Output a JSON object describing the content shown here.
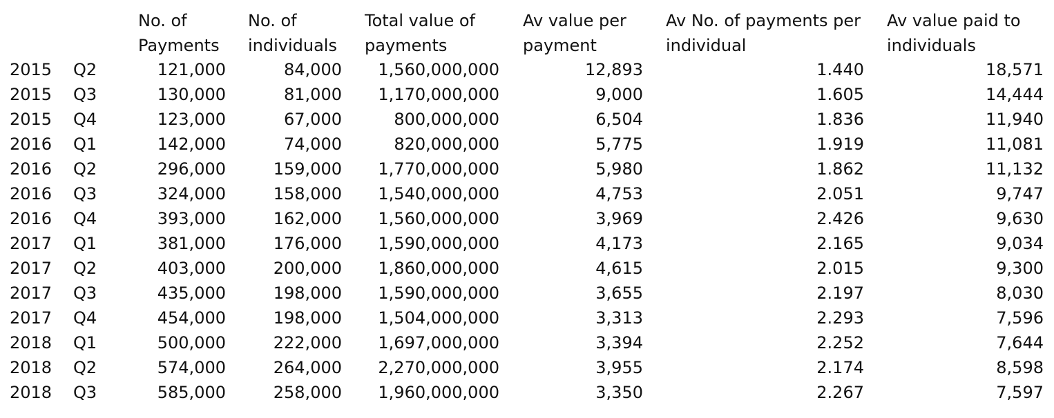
{
  "headers": [
    {
      "line1": "No. of",
      "line2": "Payments"
    },
    {
      "line1": "No. of",
      "line2": "individuals"
    },
    {
      "line1": "Total value of",
      "line2": "payments"
    },
    {
      "line1": "Av value per",
      "line2": "payment"
    },
    {
      "line1": "Av No. of payments per",
      "line2": "individual"
    },
    {
      "line1": "Av value paid to",
      "line2": "individuals"
    }
  ],
  "rows": [
    {
      "year": "2015",
      "quarter": "Q2",
      "payments": "121,000",
      "individuals": "84,000",
      "total_value": "1,560,000,000",
      "av_value_per_payment": "12,893",
      "av_payments_per_individual": "1.440",
      "av_value_per_individual": "18,571"
    },
    {
      "year": "2015",
      "quarter": "Q3",
      "payments": "130,000",
      "individuals": "81,000",
      "total_value": "1,170,000,000",
      "av_value_per_payment": "9,000",
      "av_payments_per_individual": "1.605",
      "av_value_per_individual": "14,444"
    },
    {
      "year": "2015",
      "quarter": "Q4",
      "payments": "123,000",
      "individuals": "67,000",
      "total_value": "800,000,000",
      "av_value_per_payment": "6,504",
      "av_payments_per_individual": "1.836",
      "av_value_per_individual": "11,940"
    },
    {
      "year": "2016",
      "quarter": "Q1",
      "payments": "142,000",
      "individuals": "74,000",
      "total_value": "820,000,000",
      "av_value_per_payment": "5,775",
      "av_payments_per_individual": "1.919",
      "av_value_per_individual": "11,081"
    },
    {
      "year": "2016",
      "quarter": "Q2",
      "payments": "296,000",
      "individuals": "159,000",
      "total_value": "1,770,000,000",
      "av_value_per_payment": "5,980",
      "av_payments_per_individual": "1.862",
      "av_value_per_individual": "11,132"
    },
    {
      "year": "2016",
      "quarter": "Q3",
      "payments": "324,000",
      "individuals": "158,000",
      "total_value": "1,540,000,000",
      "av_value_per_payment": "4,753",
      "av_payments_per_individual": "2.051",
      "av_value_per_individual": "9,747"
    },
    {
      "year": "2016",
      "quarter": "Q4",
      "payments": "393,000",
      "individuals": "162,000",
      "total_value": "1,560,000,000",
      "av_value_per_payment": "3,969",
      "av_payments_per_individual": "2.426",
      "av_value_per_individual": "9,630"
    },
    {
      "year": "2017",
      "quarter": "Q1",
      "payments": "381,000",
      "individuals": "176,000",
      "total_value": "1,590,000,000",
      "av_value_per_payment": "4,173",
      "av_payments_per_individual": "2.165",
      "av_value_per_individual": "9,034"
    },
    {
      "year": "2017",
      "quarter": "Q2",
      "payments": "403,000",
      "individuals": "200,000",
      "total_value": "1,860,000,000",
      "av_value_per_payment": "4,615",
      "av_payments_per_individual": "2.015",
      "av_value_per_individual": "9,300"
    },
    {
      "year": "2017",
      "quarter": "Q3",
      "payments": "435,000",
      "individuals": "198,000",
      "total_value": "1,590,000,000",
      "av_value_per_payment": "3,655",
      "av_payments_per_individual": "2.197",
      "av_value_per_individual": "8,030"
    },
    {
      "year": "2017",
      "quarter": "Q4",
      "payments": "454,000",
      "individuals": "198,000",
      "total_value": "1,504,000,000",
      "av_value_per_payment": "3,313",
      "av_payments_per_individual": "2.293",
      "av_value_per_individual": "7,596"
    },
    {
      "year": "2018",
      "quarter": "Q1",
      "payments": "500,000",
      "individuals": "222,000",
      "total_value": "1,697,000,000",
      "av_value_per_payment": "3,394",
      "av_payments_per_individual": "2.252",
      "av_value_per_individual": "7,644"
    },
    {
      "year": "2018",
      "quarter": "Q2",
      "payments": "574,000",
      "individuals": "264,000",
      "total_value": "2,270,000,000",
      "av_value_per_payment": "3,955",
      "av_payments_per_individual": "2.174",
      "av_value_per_individual": "8,598"
    },
    {
      "year": "2018",
      "quarter": "Q3",
      "payments": "585,000",
      "individuals": "258,000",
      "total_value": "1,960,000,000",
      "av_value_per_payment": "3,350",
      "av_payments_per_individual": "2.267",
      "av_value_per_individual": "7,597"
    }
  ]
}
